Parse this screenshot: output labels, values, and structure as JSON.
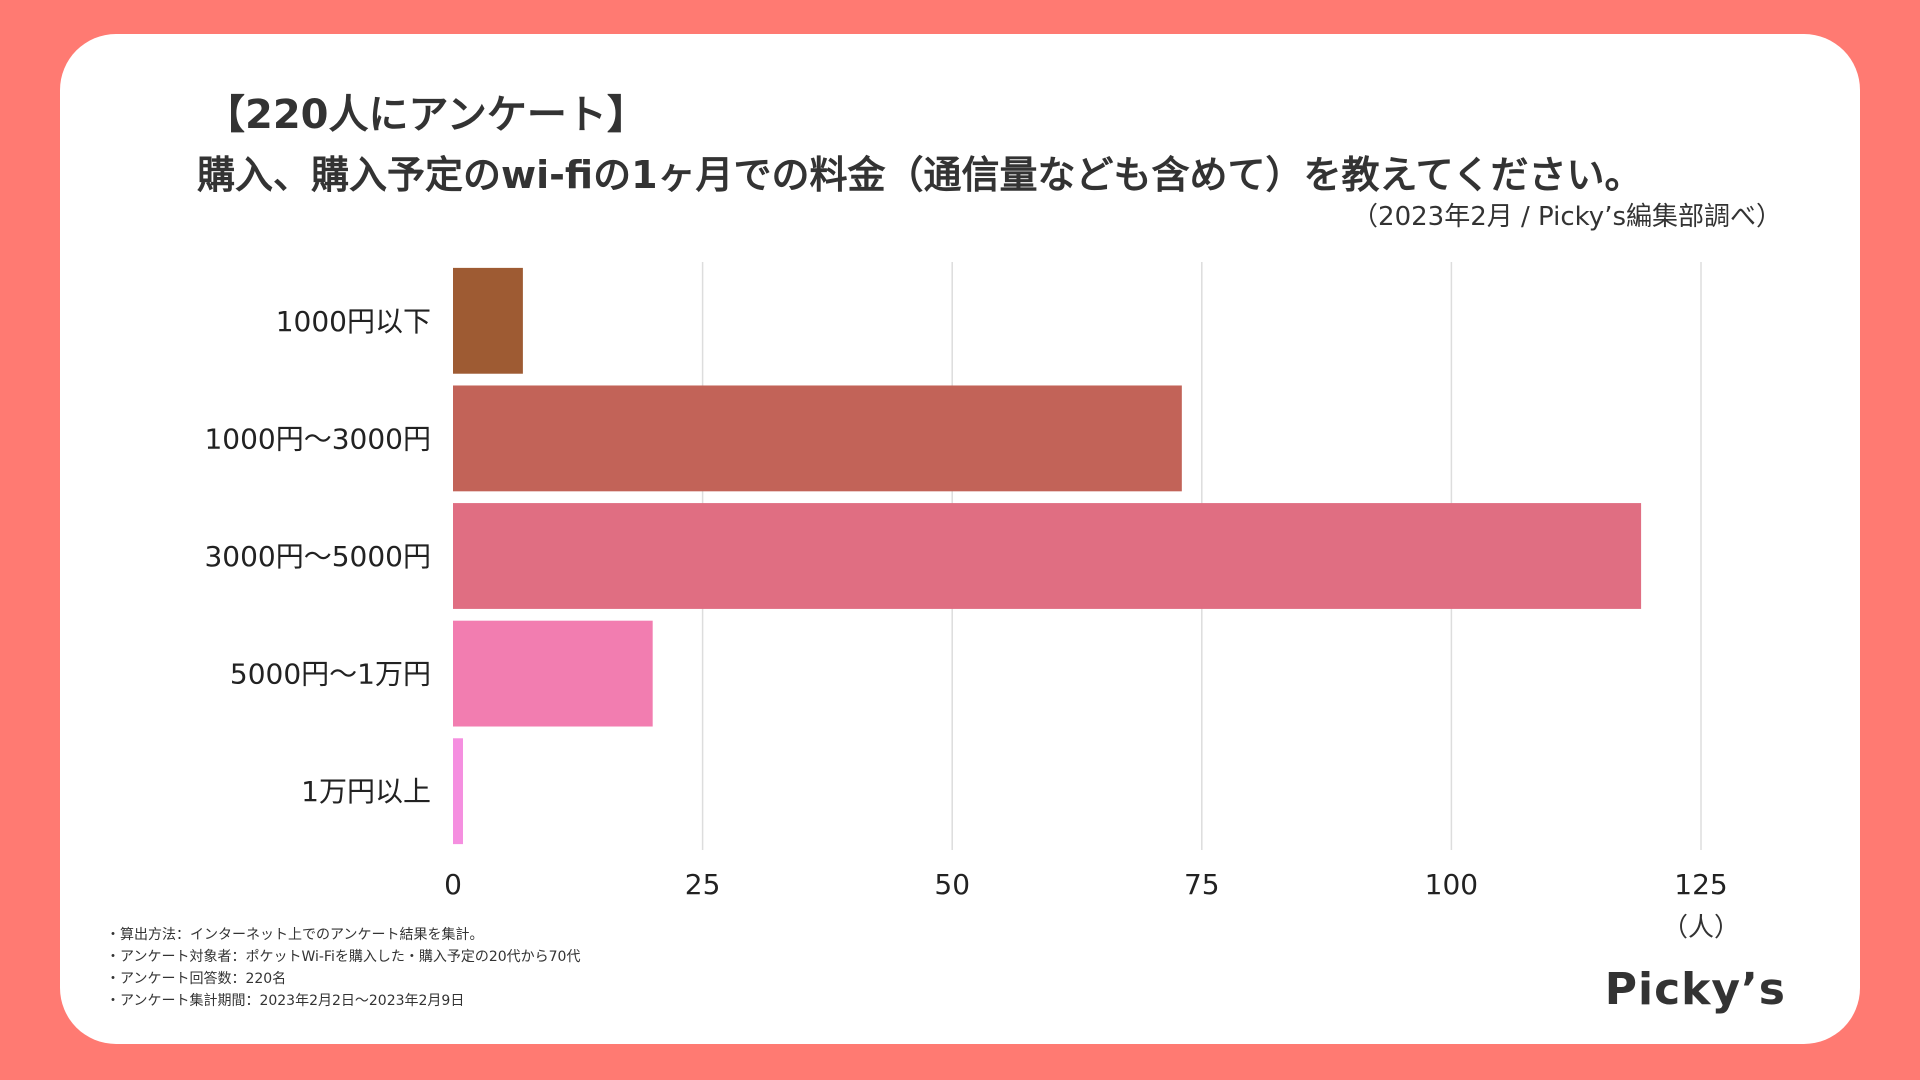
{
  "title": {
    "line1": "【220人にアンケート】",
    "line2": "購入、購入予定のwi-fiの1ヶ月での料金（通信量なども含めて）を教えてください。",
    "source": "（2023年2月 / Picky’s編集部調べ）"
  },
  "chart_data": {
    "type": "bar",
    "orientation": "horizontal",
    "categories": [
      "1000円以下",
      "1000円〜3000円",
      "3000円〜5000円",
      "5000円〜1万円",
      "1万円以上"
    ],
    "values": [
      7,
      73,
      119,
      20,
      1
    ],
    "colors": [
      "#9e5b33",
      "#c26358",
      "#e06e82",
      "#f27db0",
      "#f58fe0"
    ],
    "xlim": [
      0,
      130
    ],
    "xticks": [
      0,
      25,
      50,
      75,
      100,
      125
    ],
    "tick_labels": [
      "0",
      "25",
      "50",
      "75",
      "100",
      "125"
    ],
    "unit_label": "（人）",
    "grid": true
  },
  "notes": [
    "・算出方法：インターネット上でのアンケート結果を集計。",
    "・アンケート対象者：ポケットWi-Fiを購入した・購入予定の20代から70代",
    "・アンケート回答数：220名",
    "・アンケート集計期間：2023年2月2日〜2023年2月9日"
  ],
  "logo": "Picky’s",
  "colors": {
    "background": "#ff7a72",
    "card": "#ffffff",
    "text": "#333333",
    "grid": "#dddddd"
  }
}
